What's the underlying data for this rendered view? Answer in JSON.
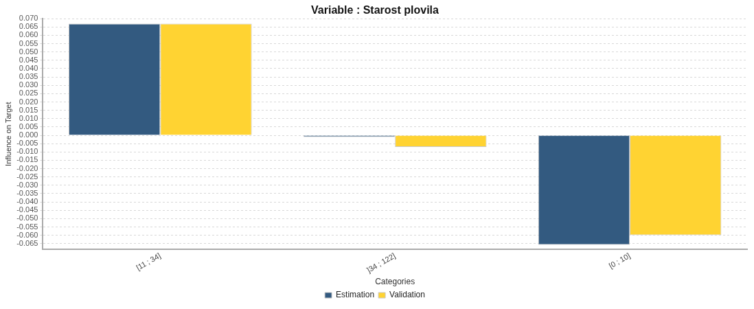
{
  "chart_data": {
    "type": "bar",
    "title": "Variable : Starost plovila",
    "xlabel": "Categories",
    "ylabel": "Influence on Target",
    "categories": [
      "[11 ; 34]",
      "]34 ; 122]",
      "[0 ; 10]"
    ],
    "series": [
      {
        "name": "Estimation",
        "color": "#335a80",
        "values": [
          0.067,
          -0.001,
          -0.0657
        ]
      },
      {
        "name": "Validation",
        "color": "#ffd332",
        "values": [
          0.067,
          -0.007,
          -0.06
        ]
      }
    ],
    "ylim": [
      -0.0685,
      0.07
    ],
    "yticks": [
      {
        "value": -0.065,
        "label": "-0.065"
      },
      {
        "value": -0.06,
        "label": "-0.060"
      },
      {
        "value": -0.055,
        "label": "-0.055"
      },
      {
        "value": -0.05,
        "label": "-0.050"
      },
      {
        "value": -0.045,
        "label": "-0.045"
      },
      {
        "value": -0.04,
        "label": "-0.040"
      },
      {
        "value": -0.035,
        "label": "-0.035"
      },
      {
        "value": -0.03,
        "label": "-0.030"
      },
      {
        "value": -0.025,
        "label": "-0.025"
      },
      {
        "value": -0.02,
        "label": "-0.020"
      },
      {
        "value": -0.015,
        "label": "-0.015"
      },
      {
        "value": -0.01,
        "label": "-0.010"
      },
      {
        "value": -0.005,
        "label": "-0.005"
      },
      {
        "value": 0,
        "label": "0.000"
      },
      {
        "value": 0.005,
        "label": "0.005"
      },
      {
        "value": 0.01,
        "label": "0.010"
      },
      {
        "value": 0.015,
        "label": "0.015"
      },
      {
        "value": 0.02,
        "label": "0.020"
      },
      {
        "value": 0.025,
        "label": "0.025"
      },
      {
        "value": 0.03,
        "label": "0.030"
      },
      {
        "value": 0.035,
        "label": "0.035"
      },
      {
        "value": 0.04,
        "label": "0.040"
      },
      {
        "value": 0.045,
        "label": "0.045"
      },
      {
        "value": 0.05,
        "label": "0.050"
      },
      {
        "value": 0.055,
        "label": "0.055"
      },
      {
        "value": 0.06,
        "label": "0.060"
      },
      {
        "value": 0.065,
        "label": "0.065"
      },
      {
        "value": 0.07,
        "label": "0.070"
      }
    ],
    "grid": "y",
    "legend": "bottom"
  }
}
